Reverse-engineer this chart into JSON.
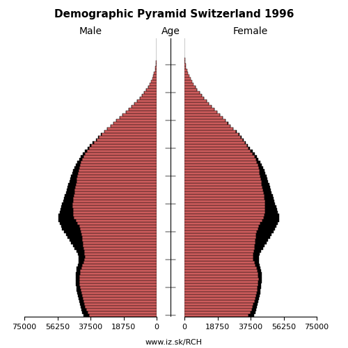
{
  "title": "Demographic Pyramid Switzerland 1996",
  "xlabel_male": "Male",
  "xlabel_female": "Female",
  "age_label": "Age",
  "footer": "www.iz.sk/RCH",
  "xlim": 75000,
  "bar_color": "#cd5c5c",
  "bar_edge_color": "#000000",
  "bar_linewidth": 0.3,
  "male": [
    41500,
    42200,
    42800,
    43200,
    43600,
    44000,
    44300,
    44600,
    44900,
    45200,
    45400,
    45600,
    45700,
    45800,
    45800,
    45700,
    45500,
    45200,
    44800,
    44400,
    44100,
    44200,
    44800,
    45500,
    46500,
    47500,
    48500,
    49500,
    50500,
    51500,
    52500,
    53500,
    54200,
    55000,
    55500,
    55800,
    55500,
    55000,
    54500,
    54000,
    53500,
    53000,
    52500,
    52000,
    51500,
    51000,
    50500,
    50000,
    49500,
    49000,
    48500,
    47800,
    47200,
    46500,
    45800,
    45000,
    44000,
    43000,
    41800,
    40500,
    39200,
    37800,
    36200,
    34500,
    33000,
    31500,
    29800,
    28000,
    26200,
    24500,
    22800,
    21000,
    19200,
    17500,
    15800,
    14200,
    12600,
    11000,
    9500,
    8200,
    7000,
    5900,
    4900,
    4000,
    3200,
    2500,
    1900,
    1400,
    950,
    600,
    380,
    220,
    120,
    65,
    32,
    15,
    7,
    3,
    1,
    0
  ],
  "female": [
    39500,
    40200,
    40800,
    41200,
    41600,
    42000,
    42300,
    42600,
    42900,
    43200,
    43400,
    43600,
    43700,
    43800,
    43800,
    43700,
    43500,
    43200,
    42800,
    42400,
    42100,
    42200,
    42800,
    43500,
    44500,
    45500,
    46500,
    47500,
    48500,
    49500,
    50500,
    51500,
    52200,
    53000,
    53500,
    53800,
    53500,
    53000,
    52500,
    52000,
    51500,
    51000,
    50500,
    50000,
    49500,
    49000,
    48500,
    48000,
    47500,
    47000,
    46500,
    45800,
    45200,
    44500,
    43800,
    43000,
    42000,
    41000,
    39800,
    38500,
    37200,
    36000,
    34800,
    33500,
    32200,
    31000,
    29500,
    27800,
    26200,
    24700,
    23200,
    21600,
    20000,
    18400,
    16900,
    15500,
    14000,
    12500,
    11000,
    9700,
    8500,
    7300,
    6200,
    5200,
    4200,
    3400,
    2600,
    1900,
    1400,
    950,
    620,
    390,
    230,
    130,
    70,
    35,
    16,
    7,
    2,
    0
  ],
  "male_foreign": [
    3200,
    3000,
    2800,
    2700,
    2600,
    2500,
    2400,
    2300,
    2200,
    2100,
    2000,
    1900,
    1900,
    1900,
    2000,
    2100,
    2200,
    2400,
    2600,
    2800,
    3100,
    3400,
    3800,
    4300,
    5000,
    5800,
    6600,
    7400,
    8200,
    9000,
    9600,
    10000,
    10200,
    10000,
    9600,
    9000,
    8300,
    7600,
    7000,
    6400,
    5900,
    5500,
    5200,
    5000,
    4800,
    4600,
    4400,
    4200,
    4000,
    3800,
    3500,
    3200,
    2900,
    2600,
    2300,
    2000,
    1700,
    1400,
    1200,
    1000,
    800,
    650,
    500,
    400,
    300,
    240,
    190,
    150,
    120,
    90,
    70,
    55,
    40,
    30,
    22,
    15,
    10,
    7,
    4,
    3,
    2,
    1,
    1,
    0,
    0,
    0,
    0,
    0,
    0,
    0,
    0,
    0,
    0,
    0,
    0,
    0,
    0,
    0,
    0,
    0
  ],
  "female_foreign": [
    3000,
    2800,
    2600,
    2500,
    2400,
    2300,
    2200,
    2100,
    2000,
    1900,
    1800,
    1700,
    1700,
    1700,
    1800,
    1900,
    2000,
    2200,
    2400,
    2600,
    2900,
    3200,
    3600,
    4100,
    4800,
    5600,
    6400,
    7200,
    8000,
    8800,
    9400,
    9800,
    10000,
    9800,
    9400,
    8800,
    8100,
    7400,
    6800,
    6200,
    5700,
    5300,
    5000,
    4800,
    4600,
    4400,
    4200,
    4000,
    3800,
    3600,
    3300,
    3000,
    2700,
    2400,
    2100,
    1800,
    1500,
    1300,
    1100,
    900,
    700,
    560,
    430,
    340,
    260,
    210,
    170,
    140,
    110,
    85,
    65,
    50,
    38,
    28,
    21,
    15,
    10,
    7,
    4,
    3,
    2,
    1,
    1,
    0,
    0,
    0,
    0,
    0,
    0,
    0,
    0,
    0,
    0,
    0,
    0,
    0,
    0,
    0,
    0,
    0
  ]
}
